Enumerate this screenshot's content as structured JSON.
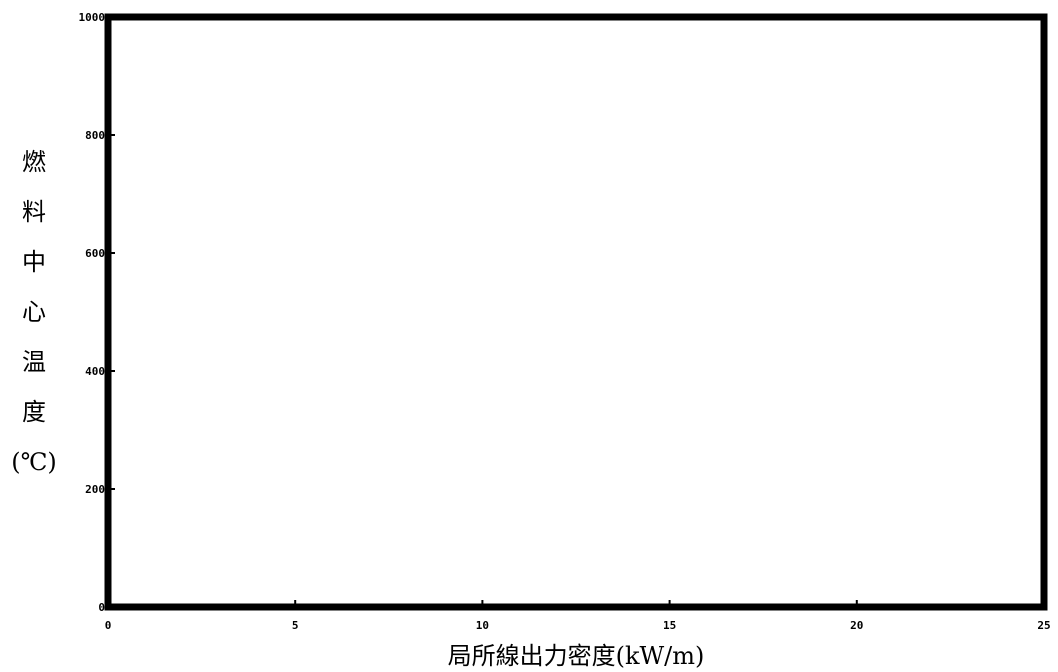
{
  "chart_data": {
    "type": "line",
    "title": "",
    "xlabel": "局所線出力密度(kW/m)",
    "ylabel": "燃料中心温度(℃)",
    "xlim": [
      0,
      25
    ],
    "ylim": [
      0,
      1000
    ],
    "xticks": [
      0,
      5,
      10,
      15,
      20,
      25
    ],
    "yticks": [
      0,
      200,
      400,
      600,
      800,
      1000
    ],
    "series": [],
    "grid": false,
    "legend": "none",
    "colors": {
      "frame": "#000000",
      "background": "#ffffff"
    }
  }
}
